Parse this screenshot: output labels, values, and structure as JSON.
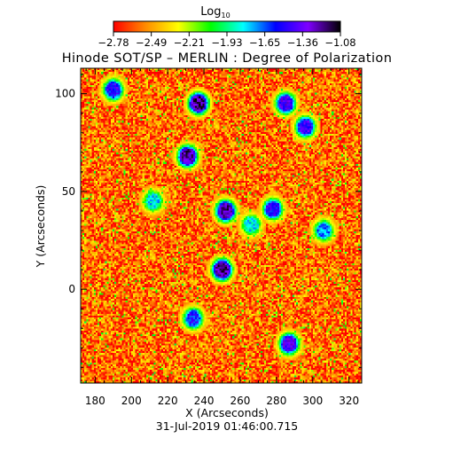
{
  "chart_data": {
    "type": "heatmap",
    "title": "Hinode SOT/SP – MERLIN : Degree of Polarization",
    "xlabel": "X (Arcseconds)",
    "ylabel": "Y (Arcseconds)",
    "xlim": [
      172,
      327
    ],
    "ylim": [
      -48,
      113
    ],
    "x_ticks": [
      180,
      200,
      220,
      240,
      260,
      280,
      300,
      320
    ],
    "y_ticks": [
      0,
      50,
      100
    ],
    "colorbar": {
      "label": "Log",
      "label_subscript": "10",
      "ticks": [
        "−2.78",
        "−2.49",
        "−2.21",
        "−1.93",
        "−1.65",
        "−1.36",
        "−1.08"
      ],
      "range": [
        -2.78,
        -1.08
      ],
      "colormap": [
        "#ff0000",
        "#ff8c00",
        "#ffff00",
        "#00ff00",
        "#00ffff",
        "#0000ff",
        "#7f00ff",
        "#000000"
      ]
    },
    "background_level": -2.6,
    "features": [
      {
        "x": 190,
        "y": 102,
        "level": -1.5
      },
      {
        "x": 237,
        "y": 95,
        "level": -1.2
      },
      {
        "x": 231,
        "y": 68,
        "level": -1.25
      },
      {
        "x": 252,
        "y": 40,
        "level": -1.25
      },
      {
        "x": 285,
        "y": 95,
        "level": -1.4
      },
      {
        "x": 296,
        "y": 83,
        "level": -1.45
      },
      {
        "x": 278,
        "y": 41,
        "level": -1.5
      },
      {
        "x": 250,
        "y": 10,
        "level": -1.2
      },
      {
        "x": 234,
        "y": -15,
        "level": -1.55
      },
      {
        "x": 287,
        "y": -28,
        "level": -1.4
      },
      {
        "x": 306,
        "y": 30,
        "level": -1.7
      },
      {
        "x": 266,
        "y": 33,
        "level": -1.8
      },
      {
        "x": 212,
        "y": 45,
        "level": -1.8
      }
    ]
  },
  "timestamp": "31-Jul-2019 01:46:00.715"
}
